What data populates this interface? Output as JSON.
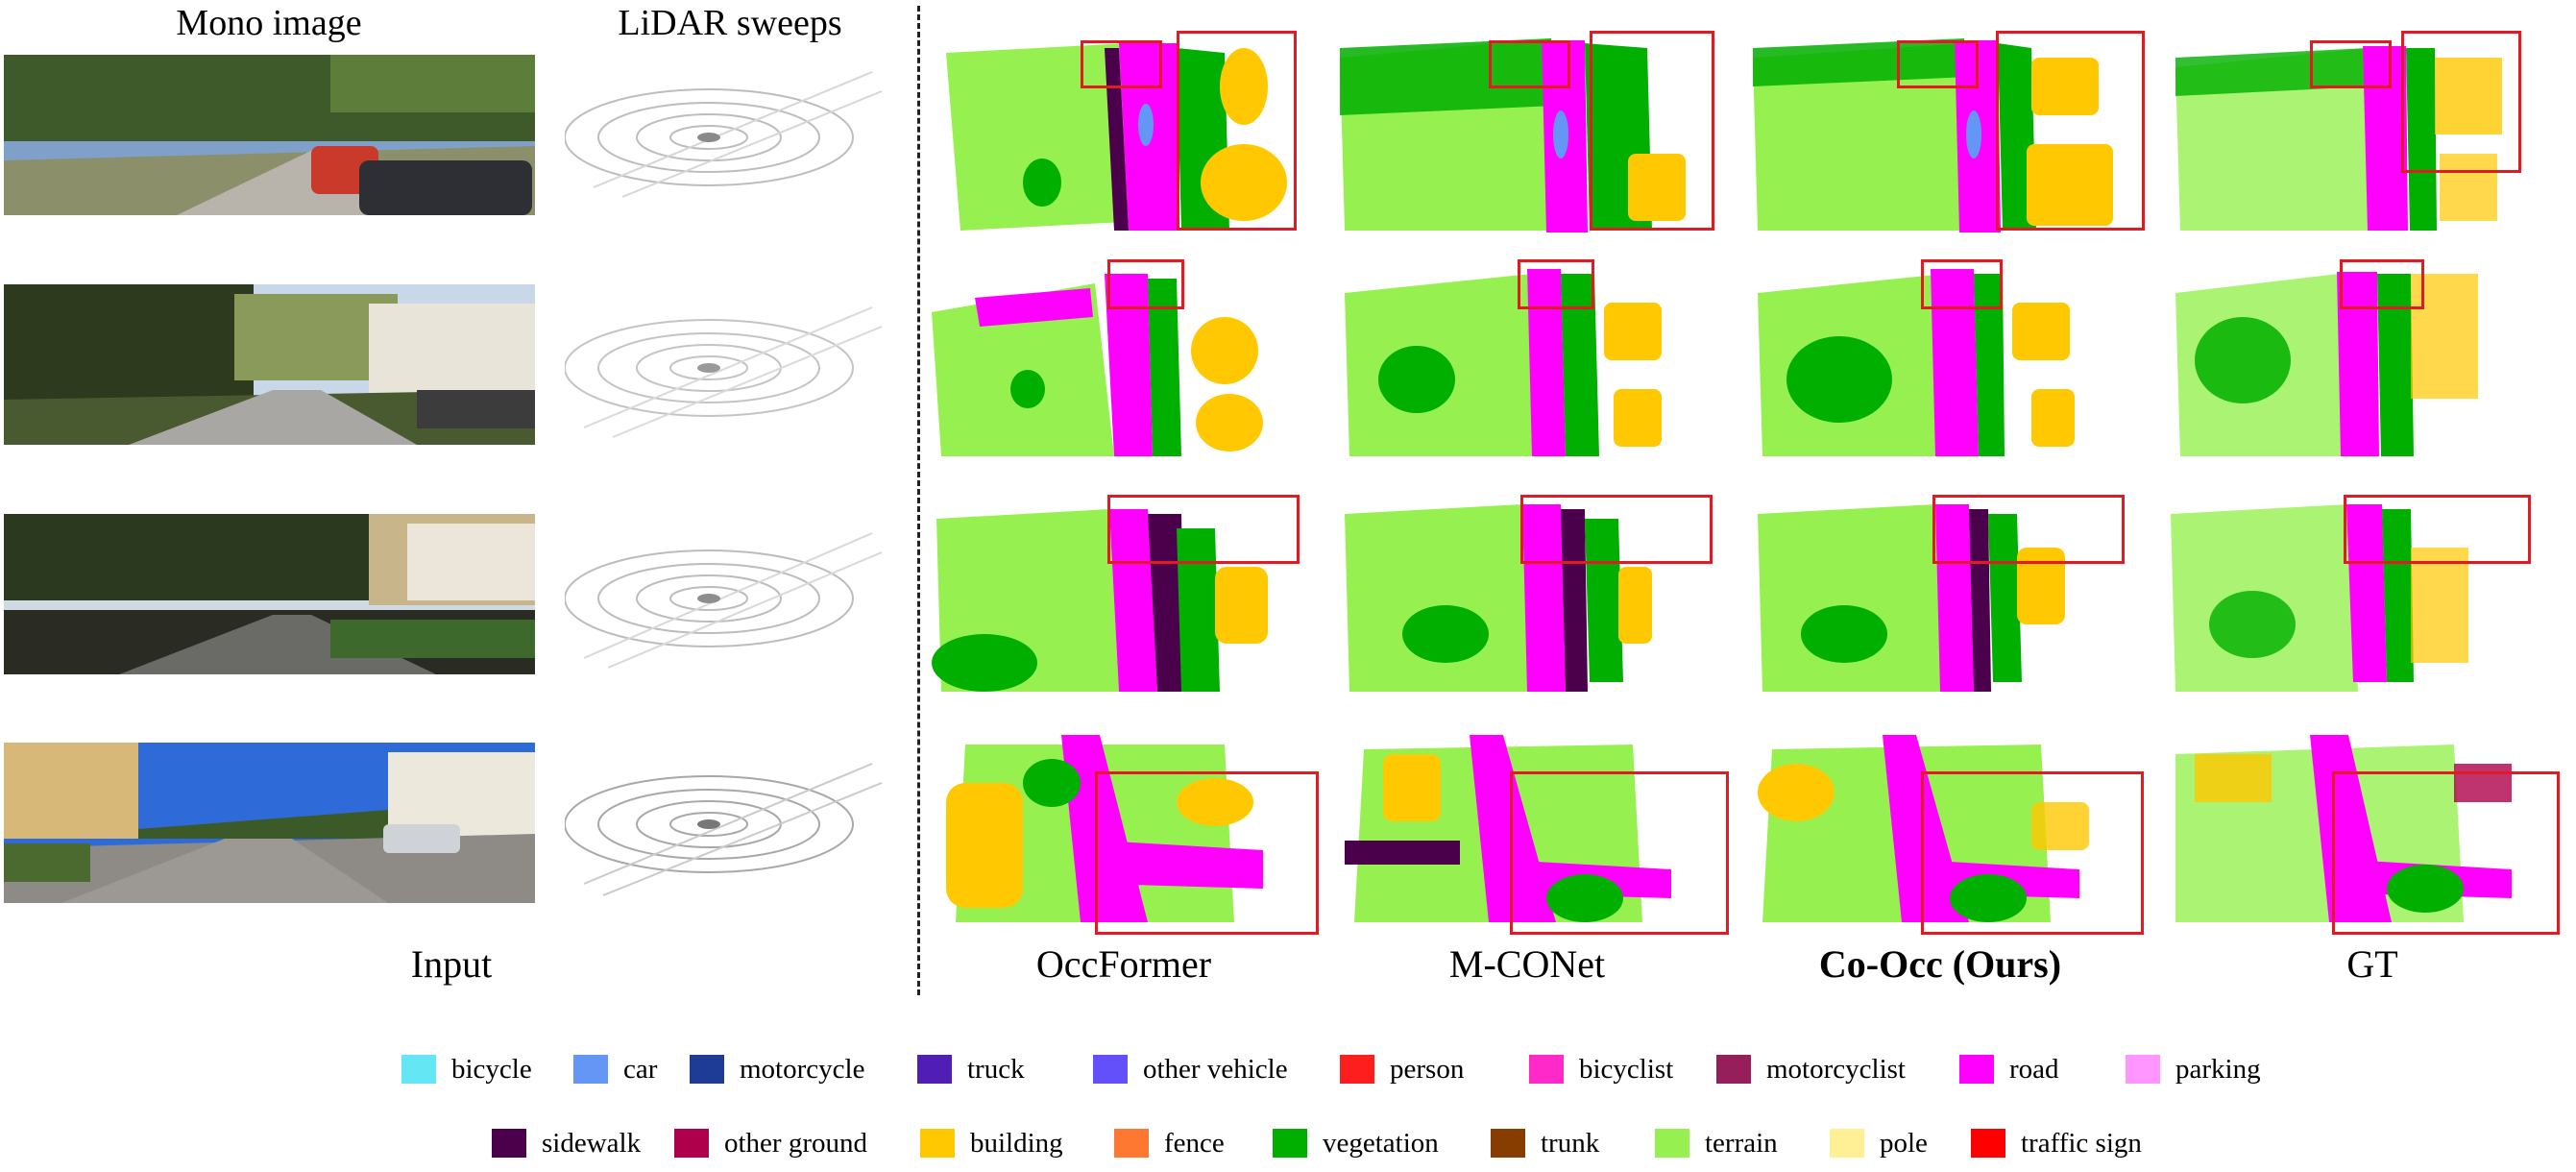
{
  "headers": {
    "mono": "Mono image",
    "lidar": "LiDAR sweeps"
  },
  "footers": {
    "input": "Input",
    "occformer": "OccFormer",
    "mconet": "M-CONet",
    "coocc": "Co-Occ (Ours)",
    "gt": "GT"
  },
  "legend": [
    {
      "label": "bicycle",
      "color": "#64e6f5"
    },
    {
      "label": "car",
      "color": "#6496f5"
    },
    {
      "label": "motorcycle",
      "color": "#1e3c96"
    },
    {
      "label": "truck",
      "color": "#501eb4"
    },
    {
      "label": "other vehicle",
      "color": "#6450fa"
    },
    {
      "label": "person",
      "color": "#ff1e1e"
    },
    {
      "label": "bicyclist",
      "color": "#ff28c8"
    },
    {
      "label": "motorcyclist",
      "color": "#961e5a"
    },
    {
      "label": "road",
      "color": "#ff00ff"
    },
    {
      "label": "parking",
      "color": "#ff96ff"
    },
    {
      "label": "sidewalk",
      "color": "#4b004b"
    },
    {
      "label": "other ground",
      "color": "#af004b"
    },
    {
      "label": "building",
      "color": "#ffc800"
    },
    {
      "label": "fence",
      "color": "#ff7832"
    },
    {
      "label": "vegetation",
      "color": "#00af00"
    },
    {
      "label": "trunk",
      "color": "#873c00"
    },
    {
      "label": "terrain",
      "color": "#96f050"
    },
    {
      "label": "pole",
      "color": "#fff096"
    },
    {
      "label": "traffic sign",
      "color": "#ff0000"
    }
  ]
}
